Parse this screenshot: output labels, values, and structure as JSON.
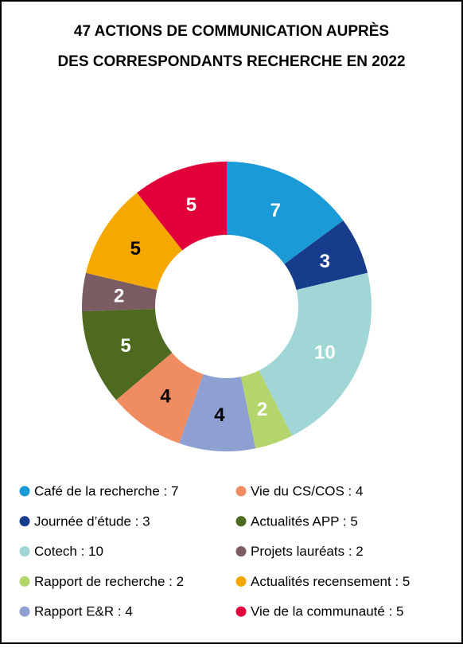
{
  "chart_data": {
    "type": "donut",
    "title": [
      "47 ACTIONS DE COMMUNICATION AUPRÈS",
      "DES CORRESPONDANTS RECHERCHE EN 2022"
    ],
    "categories": [
      "Café de la recherche : 7",
      "Journée d’étude : 3",
      "Cotech : 10",
      "Rapport de recherche : 2",
      "Rapport E&R : 4",
      "Vie du CS/COS : 4",
      "Actualités APP : 5",
      "Projets lauréats : 2",
      "Actualités recensement : 5",
      "Vie de la communauté : 5"
    ],
    "values": [
      7,
      3,
      10,
      2,
      4,
      4,
      5,
      2,
      5,
      5
    ],
    "colors": [
      "#1a9ad6",
      "#183c8c",
      "#a1d6d6",
      "#b4d46c",
      "#8e9fd2",
      "#f08c62",
      "#4e6a20",
      "#7b5c63",
      "#f5a900",
      "#e2003b"
    ],
    "label_colors": [
      "#ffffff",
      "#ffffff",
      "#ffffff",
      "#ffffff",
      "#000000",
      "#000000",
      "#ffffff",
      "#ffffff",
      "#000000",
      "#ffffff"
    ]
  }
}
